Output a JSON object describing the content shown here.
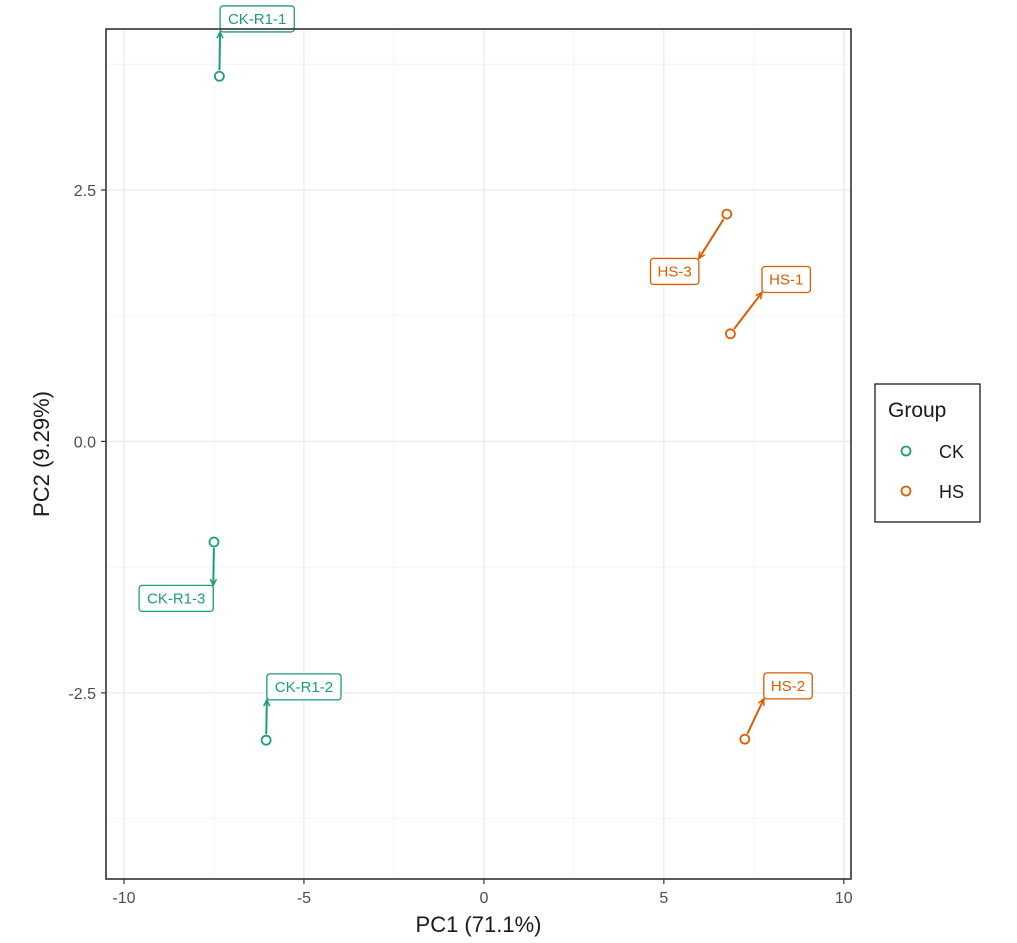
{
  "chart_data": {
    "type": "scatter",
    "title": "",
    "xlabel": "PC1 (71.1%)",
    "ylabel": "PC2 (9.29%)",
    "xlim": [
      -10.5,
      10.2
    ],
    "ylim": [
      -4.35,
      4.1
    ],
    "x_ticks": [
      -10,
      -5,
      0,
      5,
      10
    ],
    "x_tick_labels": [
      "-10",
      "-5",
      "0",
      "5",
      "10"
    ],
    "y_ticks": [
      -2.5,
      0,
      2.5
    ],
    "y_tick_labels": [
      "-2.5",
      "0.0",
      "2.5"
    ],
    "grid": true,
    "legend_position": "right",
    "legend": {
      "title": "Group",
      "entries": [
        {
          "label": "CK",
          "color": "#1b9e77"
        },
        {
          "label": "HS",
          "color": "#d95f02"
        }
      ]
    },
    "series": [
      {
        "name": "CK",
        "color": "#1b9e77",
        "points": [
          {
            "label": "CK-R1-1",
            "x": -7.35,
            "y": 3.63,
            "label_x": -6.3,
            "label_y": 4.2
          },
          {
            "label": "CK-R1-2",
            "x": -6.05,
            "y": -2.97,
            "label_x": -5.0,
            "label_y": -2.44
          },
          {
            "label": "CK-R1-3",
            "x": -7.5,
            "y": -1.0,
            "label_x": -8.55,
            "label_y": -1.56
          }
        ]
      },
      {
        "name": "HS",
        "color": "#d95f02",
        "points": [
          {
            "label": "HS-1",
            "x": 6.85,
            "y": 1.07,
            "label_x": 8.4,
            "label_y": 1.61
          },
          {
            "label": "HS-2",
            "x": 7.25,
            "y": -2.96,
            "label_x": 8.45,
            "label_y": -2.43
          },
          {
            "label": "HS-3",
            "x": 6.75,
            "y": 2.26,
            "label_x": 5.3,
            "label_y": 1.69
          }
        ]
      }
    ]
  }
}
